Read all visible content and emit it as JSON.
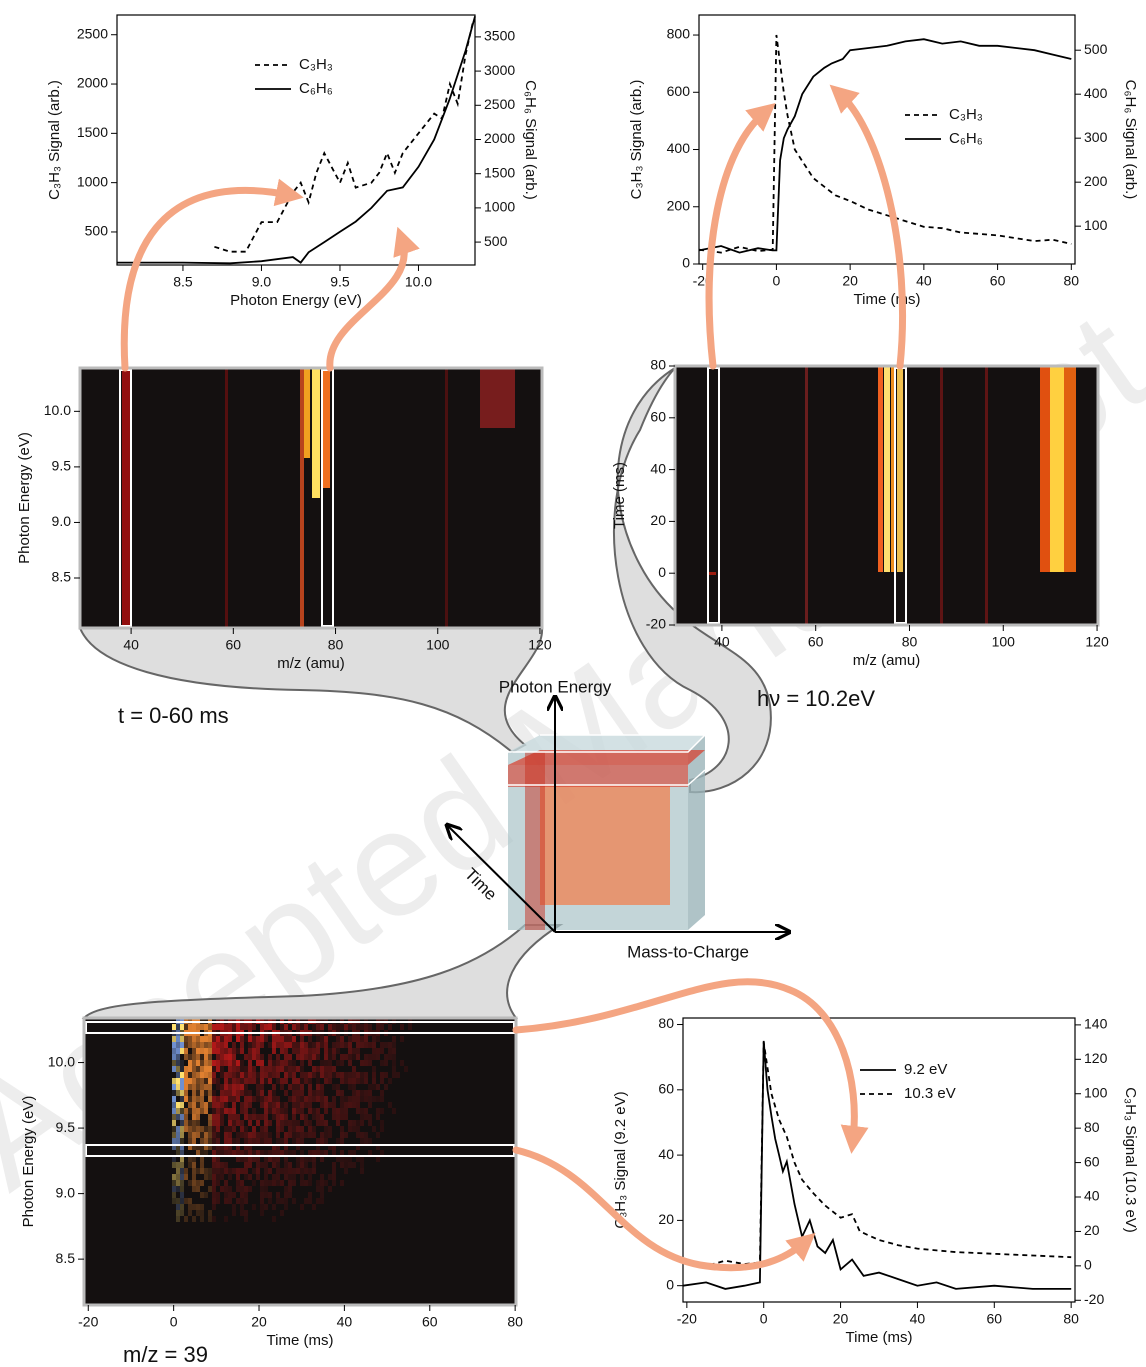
{
  "watermark": "Accepted Manuscript",
  "diagram": {
    "axes": [
      "Photon Energy",
      "Time",
      "Mass-to-Charge"
    ],
    "slices": [
      "t = 0-60 ms",
      "hν = 10.2eV",
      "m/z = 39"
    ]
  },
  "chart_data": [
    {
      "type": "line",
      "xlabel": "Photon Energy (eV)",
      "ylabel": "C₃H₃ Signal (arb.)",
      "y2label": "C₆H₆ Signal (arb.)",
      "xlim": [
        8.08,
        10.36
      ],
      "xticks": [
        8.5,
        {
          "value": 9,
          "label": "9.0"
        },
        9.5,
        {
          "value": 10,
          "label": "10.0"
        }
      ],
      "ylim": [
        165,
        2700
      ],
      "yticks": [
        500,
        1000,
        1500,
        2000,
        2500
      ],
      "y2lim": [
        165,
        3820
      ],
      "y2ticks": [
        500,
        1000,
        1500,
        2000,
        2500,
        3000,
        3500
      ],
      "legend": "upper left",
      "series": [
        {
          "name": "C₃H₃",
          "color": "#000000",
          "style": "dashed",
          "x": [
            8.7,
            8.8,
            8.9,
            9.0,
            9.1,
            9.2,
            9.25,
            9.3,
            9.35,
            9.4,
            9.45,
            9.5,
            9.55,
            9.6,
            9.7,
            9.75,
            9.8,
            9.85,
            9.9,
            10.0,
            10.1,
            10.15,
            10.2,
            10.25,
            10.3,
            10.35
          ],
          "values": [
            350,
            300,
            300,
            600,
            600,
            900,
            1000,
            800,
            1100,
            1300,
            1150,
            1000,
            1200,
            950,
            1000,
            1100,
            1300,
            1100,
            1300,
            1500,
            1700,
            1650,
            2000,
            1800,
            2300,
            2650
          ]
        },
        {
          "name": "C₆H₆",
          "color": "#000000",
          "style": "solid",
          "axis": "y2",
          "x": [
            8.08,
            8.5,
            8.8,
            9.0,
            9.2,
            9.25,
            9.3,
            9.4,
            9.5,
            9.6,
            9.7,
            9.8,
            9.9,
            10.0,
            10.1,
            10.2,
            10.3,
            10.36
          ],
          "values": [
            200,
            200,
            190,
            220,
            280,
            200,
            350,
            500,
            650,
            800,
            1000,
            1250,
            1300,
            1600,
            2000,
            2600,
            3300,
            3800
          ]
        }
      ]
    },
    {
      "type": "line",
      "xlabel": "Time (ms)",
      "ylabel": "C₃H₃ Signal (arb.)",
      "y2label": "C₆H₆ Signal (arb.)",
      "xlim": [
        -21,
        81
      ],
      "xticks": [
        -20,
        0,
        20,
        40,
        60,
        80
      ],
      "ylim": [
        0,
        870
      ],
      "yticks": [
        0,
        200,
        400,
        600,
        800
      ],
      "y2lim": [
        14,
        580
      ],
      "y2ticks": [
        100,
        200,
        300,
        400,
        500
      ],
      "legend": "center right",
      "series": [
        {
          "name": "C₃H₃",
          "color": "#000000",
          "style": "dashed",
          "x": [
            -21,
            -15,
            -10,
            -5,
            -1,
            0,
            1,
            2,
            3,
            5,
            7,
            10,
            13,
            16,
            20,
            25,
            30,
            35,
            40,
            45,
            50,
            55,
            60,
            65,
            70,
            75,
            80
          ],
          "values": [
            50,
            40,
            60,
            45,
            50,
            800,
            700,
            600,
            520,
            400,
            360,
            300,
            270,
            240,
            220,
            190,
            170,
            150,
            130,
            125,
            110,
            105,
            100,
            90,
            80,
            85,
            70
          ]
        },
        {
          "name": "C₆H₆",
          "color": "#000000",
          "style": "solid",
          "axis": "y2",
          "x": [
            -21,
            -15,
            -10,
            -5,
            -1,
            0,
            1,
            2,
            3,
            5,
            7,
            10,
            13,
            15,
            18,
            20,
            25,
            30,
            35,
            40,
            45,
            50,
            55,
            60,
            65,
            70,
            75,
            80
          ],
          "values": [
            45,
            55,
            40,
            50,
            45,
            45,
            250,
            300,
            320,
            350,
            400,
            440,
            460,
            470,
            480,
            500,
            505,
            510,
            520,
            525,
            515,
            520,
            510,
            510,
            505,
            500,
            490,
            480
          ]
        }
      ]
    },
    {
      "type": "line",
      "xlabel": "Time (ms)",
      "ylabel": "C₃H₃ Signal (9.2 eV)",
      "y2label": "C₃H₃ Signal (10.3 eV)",
      "xlim": [
        -21,
        81
      ],
      "xticks": [
        -20,
        0,
        20,
        40,
        60,
        80
      ],
      "ylim": [
        -5,
        82
      ],
      "yticks": [
        0,
        20,
        40,
        60,
        80
      ],
      "y2lim": [
        -21,
        144
      ],
      "y2ticks": [
        -20,
        0,
        20,
        40,
        60,
        80,
        100,
        120,
        140
      ],
      "legend": "upper right",
      "series": [
        {
          "name": "9.2 eV",
          "color": "#000000",
          "style": "solid",
          "x": [
            -21,
            -15,
            -10,
            -5,
            -1,
            0,
            1,
            2,
            3,
            4,
            5,
            6,
            8,
            10,
            12,
            14,
            16,
            18,
            20,
            23,
            26,
            30,
            35,
            40,
            45,
            50,
            60,
            70,
            80
          ],
          "values": [
            0,
            1,
            -1,
            0,
            1,
            75,
            60,
            52,
            45,
            40,
            35,
            38,
            25,
            15,
            20,
            12,
            10,
            14,
            5,
            8,
            3,
            4,
            2,
            0,
            1,
            -1,
            0,
            -1,
            -1
          ]
        },
        {
          "name": "10.3 eV",
          "color": "#000000",
          "style": "dashed",
          "axis": "y2",
          "x": [
            -21,
            -15,
            -10,
            -5,
            -1,
            0,
            1,
            2,
            4,
            6,
            8,
            10,
            13,
            16,
            20,
            23,
            25,
            30,
            35,
            40,
            45,
            50,
            60,
            70,
            80
          ],
          "values": [
            2,
            0,
            3,
            1,
            2,
            130,
            115,
            100,
            85,
            75,
            60,
            50,
            42,
            35,
            28,
            30,
            20,
            15,
            12,
            10,
            9,
            8,
            7,
            6,
            5
          ]
        }
      ]
    },
    {
      "type": "heatmap",
      "xlabel": "m/z (amu)",
      "ylabel": "Photon Energy (eV)",
      "xlim": [
        30,
        120.4
      ],
      "xticks": [
        40,
        60,
        80,
        100,
        120
      ],
      "ylim": [
        8.05,
        10.39
      ],
      "yticks": [
        8.5,
        {
          "value": 9,
          "label": "9.0"
        },
        9.5,
        {
          "value": 10,
          "label": "10.0"
        }
      ]
    },
    {
      "type": "heatmap",
      "xlabel": "m/z (amu)",
      "ylabel": "Time (ms)",
      "xlim": [
        30,
        120.2
      ],
      "xticks": [
        40,
        60,
        80,
        100,
        120
      ],
      "ylim": [
        -20,
        80
      ],
      "yticks": [
        -20,
        0,
        20,
        40,
        60,
        80
      ]
    },
    {
      "type": "heatmap",
      "xlabel": "Time (ms)",
      "ylabel": "Photon Energy (eV)",
      "xlim": [
        -21,
        80.2
      ],
      "xticks": [
        -20,
        0,
        20,
        40,
        60,
        80
      ],
      "ylim": [
        8.15,
        10.34
      ],
      "yticks": [
        8.5,
        {
          "value": 9,
          "label": "9.0"
        },
        9.5,
        {
          "value": 10,
          "label": "10.0"
        }
      ]
    }
  ]
}
